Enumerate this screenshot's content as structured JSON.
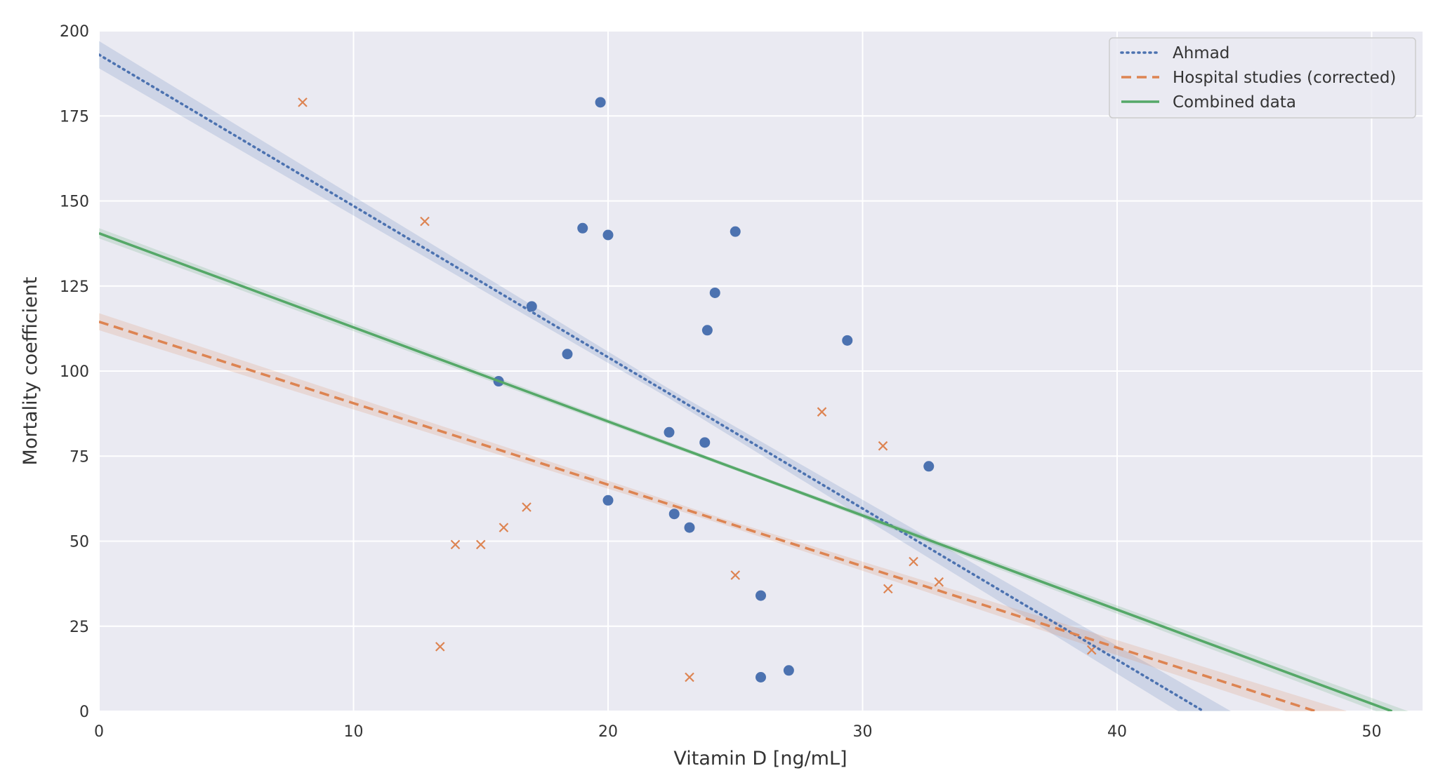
{
  "chart_data": {
    "type": "scatter",
    "xlabel": "Vitamin D [ng/mL]",
    "ylabel": "Mortality coefficient",
    "xlim": [
      0,
      52
    ],
    "ylim": [
      0,
      200
    ],
    "xticks": [
      0,
      10,
      20,
      30,
      40,
      50
    ],
    "yticks": [
      0,
      25,
      50,
      75,
      100,
      125,
      150,
      175,
      200
    ],
    "xtick_labels": [
      "0",
      "10",
      "20",
      "30",
      "40",
      "50"
    ],
    "ytick_labels": [
      "0",
      "25",
      "50",
      "75",
      "100",
      "125",
      "150",
      "175",
      "200"
    ],
    "grid": true,
    "legend_position": "top-right",
    "colors": {
      "background": "#eaeaf2",
      "grid": "#ffffff",
      "ahmad": "#4c72b0",
      "hospital": "#dd8452",
      "combined": "#55a868"
    },
    "scatter_series": [
      {
        "marker": "circle",
        "color": "#4c72b0",
        "points": [
          [
            19.7,
            179
          ],
          [
            19.0,
            142
          ],
          [
            20.0,
            140
          ],
          [
            25.0,
            141
          ],
          [
            24.2,
            123
          ],
          [
            17.0,
            119
          ],
          [
            23.9,
            112
          ],
          [
            29.4,
            109
          ],
          [
            18.4,
            105
          ],
          [
            15.7,
            97
          ],
          [
            22.4,
            82
          ],
          [
            23.8,
            79
          ],
          [
            32.6,
            72
          ],
          [
            20.0,
            62
          ],
          [
            22.6,
            58
          ],
          [
            23.2,
            54
          ],
          [
            26.0,
            34
          ],
          [
            27.1,
            12
          ],
          [
            26.0,
            10
          ]
        ]
      },
      {
        "marker": "x",
        "color": "#dd8452",
        "points": [
          [
            8.0,
            179
          ],
          [
            12.8,
            144
          ],
          [
            28.4,
            88
          ],
          [
            30.8,
            78
          ],
          [
            16.8,
            60
          ],
          [
            15.9,
            54
          ],
          [
            14.0,
            49
          ],
          [
            15.0,
            49
          ],
          [
            32.0,
            44
          ],
          [
            25.0,
            40
          ],
          [
            33.0,
            38
          ],
          [
            31.0,
            36
          ],
          [
            13.4,
            19
          ],
          [
            39.0,
            18
          ],
          [
            23.2,
            10
          ]
        ]
      }
    ],
    "series": [
      {
        "name": "Ahmad",
        "style": "dotted",
        "color": "#4c72b0",
        "x": [
          0,
          43.4
        ],
        "y": [
          193,
          0
        ],
        "band": 4
      },
      {
        "name": "Hospital studies (corrected)",
        "style": "dashed",
        "color": "#dd8452",
        "x": [
          0,
          47.8
        ],
        "y": [
          114.5,
          0
        ],
        "band": 2.5
      },
      {
        "name": "Combined data",
        "style": "solid",
        "color": "#55a868",
        "x": [
          0,
          50.8
        ],
        "y": [
          140.5,
          0
        ],
        "band": 1.5
      }
    ]
  }
}
